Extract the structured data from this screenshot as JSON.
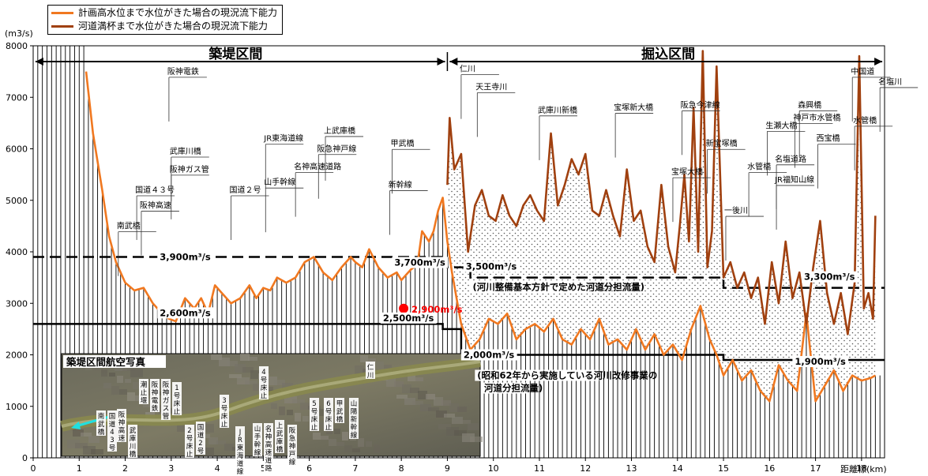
{
  "chart_data": {
    "type": "line",
    "unit_label": "(m3/s)",
    "xlabel": "距離標(km)",
    "xlim": [
      0,
      18.5
    ],
    "ylim": [
      0,
      8000
    ],
    "x_ticks": [
      0,
      1,
      2,
      3,
      4,
      5,
      6,
      7,
      8,
      9,
      10,
      11,
      12,
      13,
      14,
      15,
      16,
      17,
      18
    ],
    "y_ticks": [
      0,
      1000,
      2000,
      3000,
      4000,
      5000,
      6000,
      7000,
      8000
    ],
    "series": [
      {
        "name": "計画高水位まで水位がきた場合の現況流下能力",
        "color": "#f07820",
        "x": [
          1.15,
          1.3,
          1.5,
          1.65,
          1.8,
          2.0,
          2.2,
          2.4,
          2.6,
          2.8,
          2.95,
          3.1,
          3.3,
          3.5,
          3.65,
          3.8,
          3.95,
          4.1,
          4.3,
          4.5,
          4.7,
          4.85,
          5.0,
          5.15,
          5.3,
          5.5,
          5.7,
          5.9,
          6.1,
          6.3,
          6.5,
          6.7,
          6.9,
          7.0,
          7.15,
          7.3,
          7.5,
          7.7,
          7.9,
          8.0,
          8.2,
          8.35,
          8.45,
          8.6,
          8.7,
          8.8,
          8.9,
          9.0,
          9.1,
          9.3,
          9.5,
          9.7,
          9.9,
          10.1,
          10.3,
          10.5,
          10.7,
          10.9,
          11.1,
          11.3,
          11.5,
          11.7,
          11.9,
          12.1,
          12.3,
          12.5,
          12.7,
          12.9,
          13.1,
          13.3,
          13.5,
          13.7,
          13.9,
          14.1,
          14.3,
          14.5,
          14.7,
          14.85,
          15.0,
          15.2,
          15.4,
          15.6,
          15.8,
          16.0,
          16.2,
          16.4,
          16.6,
          16.8,
          17.0,
          17.2,
          17.4,
          17.6,
          17.8,
          18.0,
          18.2,
          18.3
        ],
        "values": [
          7500,
          6300,
          5200,
          4300,
          3800,
          3400,
          3250,
          3300,
          3000,
          2800,
          2700,
          2650,
          3100,
          2900,
          3100,
          2800,
          3350,
          3200,
          3000,
          3100,
          3350,
          3100,
          3300,
          3250,
          3500,
          3400,
          3500,
          3800,
          3900,
          3600,
          3450,
          3700,
          3900,
          3800,
          3700,
          4050,
          3700,
          3500,
          3600,
          3450,
          3650,
          3750,
          4400,
          4200,
          4400,
          4800,
          5050,
          4200,
          3600,
          2600,
          2100,
          2300,
          2700,
          2600,
          2800,
          2300,
          2500,
          2600,
          2450,
          2700,
          2300,
          2200,
          2500,
          2300,
          2700,
          2200,
          2300,
          2100,
          2500,
          2100,
          2400,
          2000,
          2200,
          1900,
          2500,
          2950,
          2300,
          2000,
          1600,
          1900,
          1500,
          1700,
          1300,
          1100,
          1800,
          1500,
          1300,
          2800,
          1100,
          1400,
          1700,
          1300,
          1600,
          1500,
          1550,
          1600
        ]
      },
      {
        "name": "河道満杯まで水位がきた場合の現況流下能力",
        "color": "#a0400f",
        "x": [
          9.0,
          9.05,
          9.15,
          9.3,
          9.45,
          9.6,
          9.75,
          9.9,
          10.05,
          10.2,
          10.35,
          10.5,
          10.65,
          10.8,
          10.95,
          11.1,
          11.25,
          11.4,
          11.55,
          11.7,
          11.85,
          12.0,
          12.15,
          12.3,
          12.45,
          12.6,
          12.75,
          12.9,
          13.05,
          13.2,
          13.35,
          13.5,
          13.65,
          13.8,
          13.95,
          14.05,
          14.15,
          14.25,
          14.35,
          14.45,
          14.55,
          14.65,
          14.75,
          14.85,
          15.0,
          15.15,
          15.3,
          15.45,
          15.6,
          15.75,
          15.9,
          16.05,
          16.2,
          16.35,
          16.5,
          16.65,
          16.8,
          16.95,
          17.1,
          17.25,
          17.4,
          17.55,
          17.7,
          17.85,
          17.95,
          18.05,
          18.15,
          18.25,
          18.3
        ],
        "values": [
          5300,
          6600,
          5600,
          5900,
          4000,
          4900,
          5200,
          4700,
          4600,
          5100,
          4700,
          4500,
          4900,
          5100,
          4800,
          4600,
          6300,
          4900,
          5300,
          5800,
          5500,
          5900,
          4800,
          4700,
          5200,
          4700,
          4300,
          5600,
          4600,
          4800,
          4100,
          3800,
          5300,
          4100,
          3600,
          4500,
          5500,
          4200,
          6800,
          4000,
          7900,
          3700,
          4400,
          7600,
          3500,
          3800,
          3300,
          3600,
          3100,
          3500,
          2600,
          3800,
          3000,
          4200,
          3100,
          3600,
          2600,
          3700,
          4600,
          3200,
          2600,
          3200,
          2400,
          3400,
          7800,
          2900,
          3200,
          2700,
          4700
        ]
      }
    ],
    "section_labels": {
      "left": "築堤区間",
      "right": "掘込区間",
      "boundary_km": 9.0
    },
    "design_flows": [
      {
        "x": [
          0,
          9.0,
          9.0,
          9.5,
          9.5,
          15.0,
          15.0,
          18.5
        ],
        "y": [
          3900,
          3900,
          3700,
          3700,
          3500,
          3500,
          3300,
          3300
        ],
        "style": "dashed",
        "label_a": "3,900m³/s",
        "label_b": "3,700m³/s",
        "label_c": "3,500m³/s",
        "label_d": "3,300m³/s",
        "note": "(河川整備基本方針で定めた河道分担流量)"
      },
      {
        "x": [
          0,
          8.9,
          8.9,
          9.3,
          9.3,
          15.0,
          15.0,
          18.5
        ],
        "y": [
          2600,
          2600,
          2500,
          2500,
          2000,
          2000,
          1900,
          1900
        ],
        "style": "solid",
        "label_a": "2,600m³/s",
        "label_b": "2,500m³/s",
        "label_c": "2,000m³/s",
        "label_d": "1,900m³/s",
        "note_line1": "(昭和62年から実施している河川改修事業の",
        "note_line2": "河道分担流量)"
      }
    ],
    "red_point": {
      "x": 8.05,
      "y": 2900,
      "label": "2,900m³/s"
    },
    "annotations": [
      {
        "text": "南武橋",
        "x": 1.85,
        "y": 4450
      },
      {
        "text": "阪神高速",
        "x": 2.35,
        "y": 4850
      },
      {
        "text": "国道４３号",
        "x": 2.25,
        "y": 5150
      },
      {
        "text": "阪神ガス管",
        "x": 3.0,
        "y": 5550
      },
      {
        "text": "武庫川橋",
        "x": 3.0,
        "y": 5900
      },
      {
        "text": "阪神電鉄",
        "x": 2.95,
        "y": 7450
      },
      {
        "text": "国道２号",
        "x": 4.3,
        "y": 5150
      },
      {
        "text": "JR東海道線",
        "x": 5.05,
        "y": 6150
      },
      {
        "text": "山手幹線",
        "x": 5.05,
        "y": 5300
      },
      {
        "text": "名神高速道路",
        "x": 5.7,
        "y": 5600
      },
      {
        "text": "阪急神戸線",
        "x": 6.2,
        "y": 5950
      },
      {
        "text": "上武庫橋",
        "x": 6.35,
        "y": 6300
      },
      {
        "text": "甲武橋",
        "x": 7.8,
        "y": 6050
      },
      {
        "text": "新幹線",
        "x": 7.75,
        "y": 5250
      },
      {
        "text": "仁川",
        "x": 9.3,
        "y": 7500
      },
      {
        "text": "天王寺川",
        "x": 9.65,
        "y": 7150
      },
      {
        "text": "武庫川新橋",
        "x": 11.0,
        "y": 6700
      },
      {
        "text": "宝塚新大橋",
        "x": 12.65,
        "y": 6750
      },
      {
        "text": "阪急今津線",
        "x": 14.1,
        "y": 6800
      },
      {
        "text": "宝塚大橋",
        "x": 13.9,
        "y": 5500
      },
      {
        "text": "新宝塚橋",
        "x": 14.65,
        "y": 6050
      },
      {
        "text": "一後川",
        "x": 15.05,
        "y": 4750
      },
      {
        "text": "水管橋",
        "x": 15.55,
        "y": 5600
      },
      {
        "text": "生瀬大橋",
        "x": 15.95,
        "y": 6400
      },
      {
        "text": "名塩道路",
        "x": 16.15,
        "y": 5750
      },
      {
        "text": "JR福知山線",
        "x": 16.15,
        "y": 5350
      },
      {
        "text": "神戸市水管橋",
        "x": 16.55,
        "y": 6550
      },
      {
        "text": "森興橋",
        "x": 16.65,
        "y": 6800
      },
      {
        "text": "西宝橋",
        "x": 17.05,
        "y": 6150
      },
      {
        "text": "中国道",
        "x": 17.8,
        "y": 7450
      },
      {
        "text": "水管橋",
        "x": 17.85,
        "y": 6500
      },
      {
        "text": "名塩川",
        "x": 18.4,
        "y": 7250
      }
    ],
    "photo_title": "築堤区間航空写真",
    "photo_labels": [
      "南武橋",
      "国道43号",
      "阪神高速",
      "武庫川橋",
      "潮止堰",
      "阪神電鉄",
      "阪神ガス管",
      "1号床止",
      "2号床止",
      "国道2号",
      "3号床止",
      "JR東海道線",
      "4号床止",
      "山手幹線",
      "名神高速道路",
      "上武庫橋",
      "阪急神戸線",
      "5号床止",
      "6号床止",
      "甲武橋",
      "山陽新幹線",
      "仁川"
    ]
  }
}
